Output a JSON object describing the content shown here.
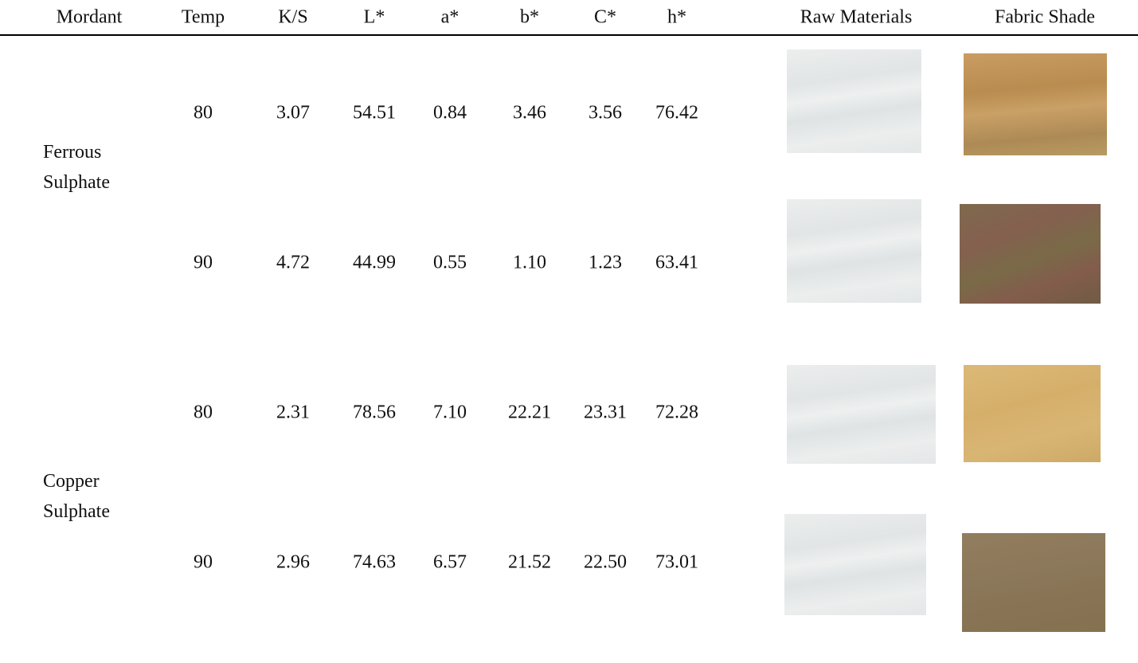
{
  "table": {
    "columns": [
      "Mordant",
      "Temp",
      "K/S",
      "L*",
      "a*",
      "b*",
      "C*",
      "h*",
      "Raw Materials",
      "Fabric Shade"
    ],
    "groups": [
      {
        "mordant": "Ferrous Sulphate",
        "rows": [
          [
            "80",
            "3.07",
            "54.51",
            "0.84",
            "3.46",
            "3.56",
            "76.42"
          ],
          [
            "90",
            "4.72",
            "44.99",
            "0.55",
            "1.10",
            "1.23",
            "63.41"
          ]
        ]
      },
      {
        "mordant": "Copper Sulphate",
        "rows": [
          [
            "80",
            "2.31",
            "78.56",
            "7.10",
            "22.21",
            "23.31",
            "72.28"
          ],
          [
            "90",
            "2.96",
            "74.63",
            "6.57",
            "21.52",
            "22.50",
            "73.01"
          ]
        ]
      }
    ]
  }
}
